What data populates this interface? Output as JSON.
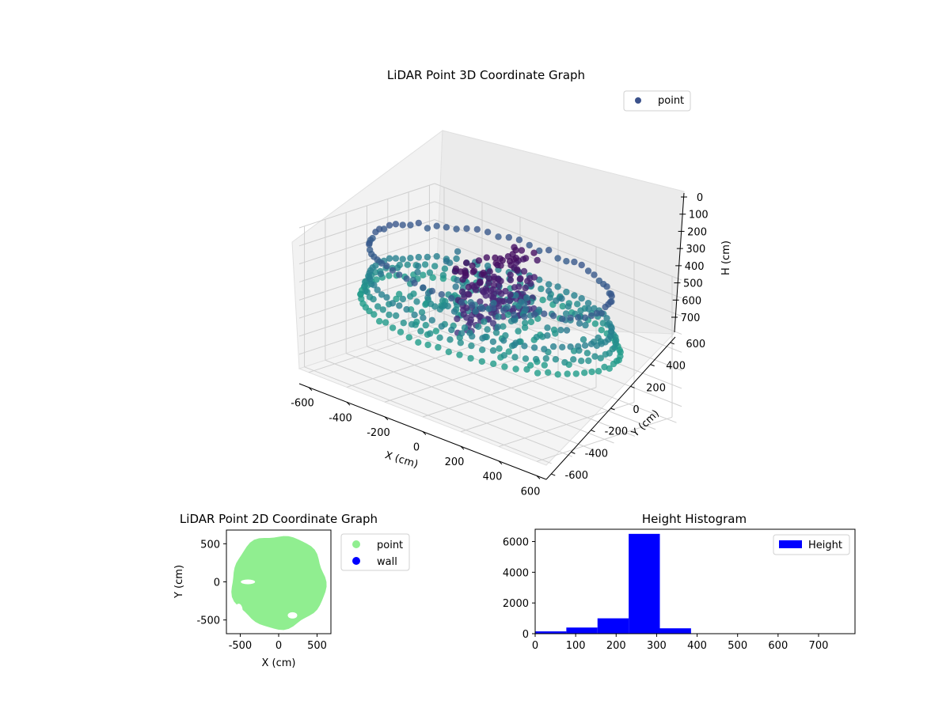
{
  "chart_data": [
    {
      "type": "scatter",
      "projection": "3d",
      "title": "LiDAR Point 3D Coordinate Graph",
      "xlabel": "X (cm)",
      "ylabel": "Y (cm)",
      "zlabel": "H (cm)",
      "xlim": [
        -650,
        650
      ],
      "ylim": [
        -650,
        650
      ],
      "zlim": [
        0,
        780
      ],
      "z_inverted": true,
      "xticks": [
        "-600",
        "-400",
        "-200",
        "0",
        "200",
        "400",
        "600"
      ],
      "yticks": [
        "-600",
        "-400",
        "-200",
        "0",
        "200",
        "400",
        "600"
      ],
      "zticks": [
        "0",
        "100",
        "200",
        "300",
        "400",
        "500",
        "600",
        "700"
      ],
      "grid": true,
      "legend": {
        "position": "upper-right",
        "entries": [
          {
            "label": "point",
            "color": "#3b528b"
          }
        ]
      },
      "colormap": "viridis",
      "series": [
        {
          "name": "point",
          "shape": "approx. cylindrical room scan, radius ~600 cm, heights 0-400 cm, dark near-ceiling cluster near x~0",
          "outer_radius": 600,
          "height_range": [
            0,
            400
          ]
        }
      ]
    },
    {
      "type": "scatter",
      "title": "LiDAR Point 2D Coordinate Graph",
      "xlabel": "X (cm)",
      "ylabel": "Y (cm)",
      "xlim": [
        -680,
        680
      ],
      "ylim": [
        -680,
        680
      ],
      "xticks": [
        "-500",
        "0",
        "500"
      ],
      "yticks": [
        "-500",
        "0",
        "500"
      ],
      "legend": {
        "position": "outside-right",
        "entries": [
          {
            "label": "point",
            "color": "#90ee90"
          },
          {
            "label": "wall",
            "color": "#0000ff"
          }
        ]
      },
      "series": [
        {
          "name": "point",
          "color": "#90ee90",
          "shape": "filled disc",
          "center": [
            0,
            0
          ],
          "radius": 610
        },
        {
          "name": "wall",
          "color": "#0000ff",
          "points": []
        }
      ]
    },
    {
      "type": "bar",
      "subtype": "histogram",
      "title": "Height Histogram",
      "xlim": [
        0,
        790
      ],
      "ylim": [
        0,
        6800
      ],
      "xticks": [
        "0",
        "100",
        "200",
        "300",
        "400",
        "500",
        "600",
        "700"
      ],
      "yticks": [
        "0",
        "2000",
        "4000",
        "6000"
      ],
      "legend": {
        "position": "upper-right",
        "entries": [
          {
            "label": "Height",
            "color": "#0000ff"
          }
        ]
      },
      "color": "#0000ff",
      "bins": [
        {
          "x0": 0,
          "x1": 77,
          "count": 150
        },
        {
          "x0": 77,
          "x1": 154,
          "count": 400
        },
        {
          "x0": 154,
          "x1": 231,
          "count": 1000
        },
        {
          "x0": 231,
          "x1": 308,
          "count": 6500
        },
        {
          "x0": 308,
          "x1": 385,
          "count": 350
        },
        {
          "x0": 385,
          "x1": 462,
          "count": 10
        },
        {
          "x0": 462,
          "x1": 539,
          "count": 5
        },
        {
          "x0": 539,
          "x1": 616,
          "count": 3
        },
        {
          "x0": 616,
          "x1": 693,
          "count": 2
        },
        {
          "x0": 693,
          "x1": 770,
          "count": 1
        }
      ]
    }
  ]
}
